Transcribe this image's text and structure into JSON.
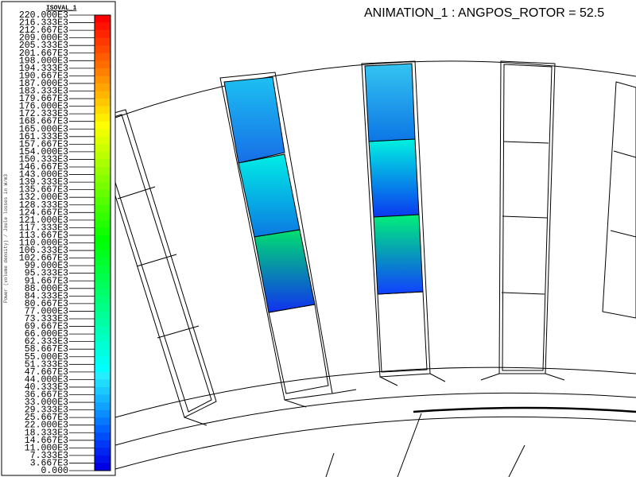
{
  "header": {
    "title": "ANIMATION_1 : ANGPOS_ROTOR = 52.5"
  },
  "legend": {
    "title": "ISOVAL_1",
    "axis_label": "Power (volume density) / Joule losses in W/m3",
    "labels": [
      "220.000E3",
      "216.333E3",
      "212.667E3",
      "209.000E3",
      "205.333E3",
      "201.667E3",
      "198.000E3",
      "194.333E3",
      "190.667E3",
      "187.000E3",
      "183.333E3",
      "179.667E3",
      "176.000E3",
      "172.333E3",
      "168.667E3",
      "165.000E3",
      "161.333E3",
      "157.667E3",
      "154.000E3",
      "150.333E3",
      "146.667E3",
      "143.000E3",
      "139.333E3",
      "135.667E3",
      "132.000E3",
      "128.333E3",
      "124.667E3",
      "121.000E3",
      "117.333E3",
      "113.667E3",
      "110.000E3",
      "106.333E3",
      "102.667E3",
      "99.000E3",
      "95.333E3",
      "91.667E3",
      "88.000E3",
      "84.333E3",
      "80.667E3",
      "77.000E3",
      "73.333E3",
      "69.667E3",
      "66.000E3",
      "62.333E3",
      "58.667E3",
      "55.000E3",
      "51.333E3",
      "47.667E3",
      "44.000E3",
      "40.333E3",
      "36.667E3",
      "33.000E3",
      "29.333E3",
      "25.667E3",
      "22.000E3",
      "18.333E3",
      "14.667E3",
      "11.000E3",
      "7.333E3",
      "3.667E3",
      "0.000"
    ]
  }
}
